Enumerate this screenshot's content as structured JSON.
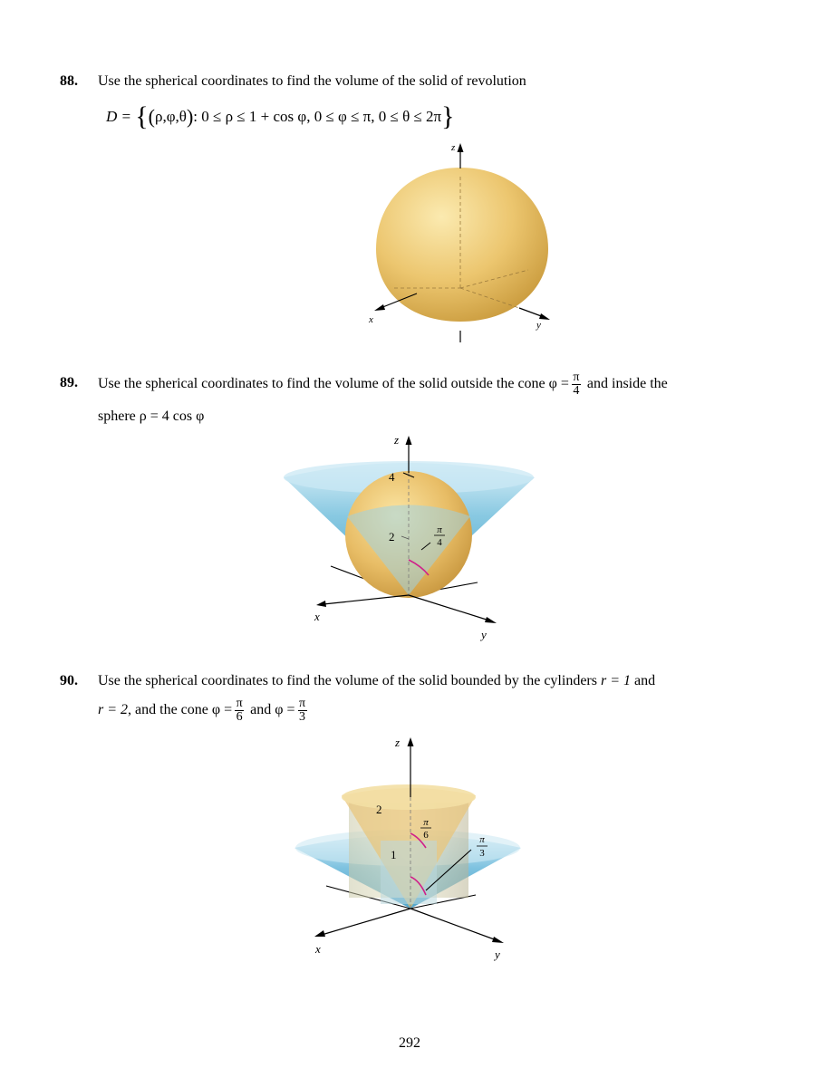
{
  "problems": [
    {
      "number": "88.",
      "text": "Use the spherical coordinates to find the volume of the solid of revolution",
      "set_D": "D =",
      "set_vars": "ρ,φ,θ",
      "set_cond": ": 0 ≤ ρ ≤ 1 + cos φ, 0 ≤ φ ≤ π, 0 ≤ θ ≤ 2π",
      "figure": {
        "z_label": "z",
        "x_label": "x",
        "y_label": "y"
      }
    },
    {
      "number": "89.",
      "text_a": "Use the spherical coordinates to find the volume of the solid outside the cone φ =",
      "frac_num": "π",
      "frac_den": "4",
      "text_b": "and inside the",
      "text_c": "sphere  ρ = 4 cos φ",
      "figure": {
        "z_label": "z",
        "x_label": "x",
        "y_label": "y",
        "tick_4": "4",
        "tick_2": "2",
        "angle_num": "π",
        "angle_den": "4"
      }
    },
    {
      "number": "90.",
      "text_a": "Use the spherical coordinates to find the volume of the solid bounded by the cylinders",
      "r1": "r = 1",
      "and": "and",
      "r2": "r = 2",
      "text_b": ", and the cone",
      "phi_eq": "φ =",
      "f1_num": "π",
      "f1_den": "6",
      "and2": "and",
      "f2_num": "π",
      "f2_den": "3",
      "figure": {
        "z_label": "z",
        "x_label": "x",
        "y_label": "y",
        "tick_2": "2",
        "tick_1": "1",
        "a1_num": "π",
        "a1_den": "6",
        "a2_num": "π",
        "a2_den": "3"
      }
    }
  ],
  "page_number": "292",
  "colors": {
    "sphere": "#e7c06a",
    "cone": "#5cb3d6",
    "angle_arc": "#d0208a"
  }
}
